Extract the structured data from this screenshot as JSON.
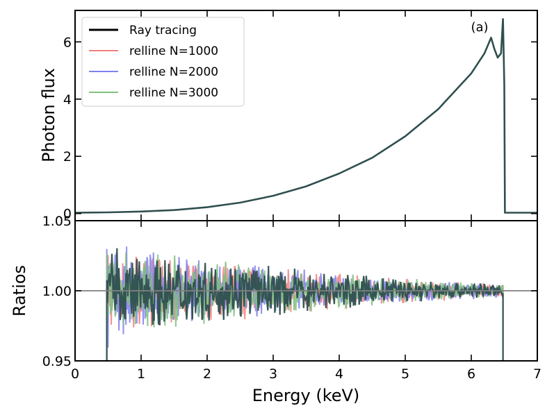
{
  "chart_data": [
    {
      "type": "line",
      "panel": "top",
      "annotation": "(a)",
      "xlim": [
        0,
        7
      ],
      "ylim": [
        -0.25,
        7.1
      ],
      "ylabel": "Photon flux",
      "yticks": [
        0,
        2,
        4,
        6
      ],
      "ytick_labels": [
        "0",
        "2",
        "4",
        "6"
      ],
      "legend_position": "top-left",
      "series": [
        {
          "name": "Ray tracing",
          "color": "#000000"
        },
        {
          "name": "relline N=1000",
          "color": "#f08080"
        },
        {
          "name": "relline N=2000",
          "color": "#8080f0"
        },
        {
          "name": "relline N=3000",
          "color": "#80c080"
        }
      ],
      "line_color": "#2f4f4f",
      "x": [
        0,
        0.5,
        1.0,
        1.5,
        2.0,
        2.5,
        3.0,
        3.5,
        4.0,
        4.5,
        5.0,
        5.5,
        6.0,
        6.2,
        6.3,
        6.35,
        6.4,
        6.45,
        6.48,
        6.5,
        6.51,
        7.0
      ],
      "y": [
        0.03,
        0.04,
        0.07,
        0.12,
        0.22,
        0.38,
        0.62,
        0.95,
        1.4,
        1.95,
        2.7,
        3.65,
        4.9,
        5.6,
        6.15,
        5.75,
        5.45,
        5.6,
        6.8,
        4.5,
        0.03,
        0.03
      ]
    },
    {
      "type": "line",
      "panel": "bottom",
      "xlim": [
        0,
        7
      ],
      "ylim": [
        0.95,
        1.05
      ],
      "xlabel": "Energy (keV)",
      "ylabel": "Ratios",
      "xticks": [
        0,
        1,
        2,
        3,
        4,
        5,
        6,
        7
      ],
      "xtick_labels": [
        "0",
        "1",
        "2",
        "3",
        "4",
        "5",
        "6",
        "7"
      ],
      "yticks": [
        0.95,
        1.0,
        1.05
      ],
      "ytick_labels": [
        "0.95",
        "1.00",
        "1.05"
      ],
      "reference_line": 1.0,
      "reference_color": "#808080",
      "noise_range_x": [
        0.48,
        6.48
      ],
      "noise_amplitude_start": 0.02,
      "noise_amplitude_end": 0.004,
      "series_colors": [
        "#f08080",
        "#8080f0",
        "#80c080",
        "#2f4f4f"
      ]
    }
  ]
}
